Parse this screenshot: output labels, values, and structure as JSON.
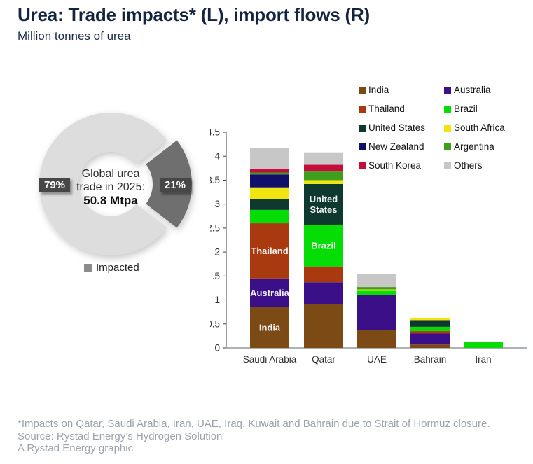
{
  "header": {
    "title": "Urea: Trade impacts* (L), import flows (R)",
    "subtitle": "Million tonnes of urea"
  },
  "chart_data": [
    {
      "type": "pie",
      "donut": true,
      "center_text": {
        "line1": "Global urea",
        "line2": "trade in 2025:",
        "line3": "50.8 Mtpa"
      },
      "slices": [
        {
          "callout": "79%",
          "value_pct": 79,
          "color": "#DDDDDD",
          "exploded": false
        },
        {
          "callout": "21%",
          "value_pct": 21,
          "color": "#6F6F6F",
          "exploded": true
        }
      ],
      "legend": {
        "label": "Impacted",
        "color": "#8C8C8C"
      },
      "callout_left": "79%",
      "callout_right": "21%"
    },
    {
      "type": "bar",
      "stacked": true,
      "categories": [
        "Saudi Arabia",
        "Qatar",
        "UAE",
        "Bahrain",
        "Iran"
      ],
      "series": [
        {
          "name": "India",
          "color": "#7C4A15",
          "values": [
            0.85,
            0.92,
            0.38,
            0.07,
            0
          ]
        },
        {
          "name": "Australia",
          "color": "#3A0F87",
          "values": [
            0.6,
            0.45,
            0.73,
            0.23,
            0
          ]
        },
        {
          "name": "Thailand",
          "color": "#A93A10",
          "values": [
            1.15,
            0.33,
            0,
            0.05,
            0
          ]
        },
        {
          "name": "Brazil",
          "color": "#06DD06",
          "values": [
            0.28,
            0.87,
            0.08,
            0.09,
            0.13
          ]
        },
        {
          "name": "United States",
          "color": "#0E392E",
          "values": [
            0.22,
            0.85,
            0,
            0.14,
            0
          ]
        },
        {
          "name": "South Africa",
          "color": "#F1E511",
          "values": [
            0.25,
            0.08,
            0.03,
            0.05,
            0
          ]
        },
        {
          "name": "New Zealand",
          "color": "#101069",
          "values": [
            0.27,
            0,
            0,
            0,
            0
          ]
        },
        {
          "name": "Argentina",
          "color": "#3F9E1E",
          "values": [
            0.04,
            0.18,
            0.05,
            0,
            0
          ]
        },
        {
          "name": "South Korea",
          "color": "#C50C3B",
          "values": [
            0.08,
            0.14,
            0,
            0,
            0
          ]
        },
        {
          "name": "Others",
          "color": "#C7C7C7",
          "values": [
            0.43,
            0.26,
            0.27,
            0,
            0
          ]
        }
      ],
      "ylim": [
        0,
        4.5
      ],
      "ytick_step": 0.5,
      "grid": false,
      "legend_position": "top-right",
      "bar_labels": [
        {
          "category_index": 0,
          "series": "India",
          "lines": [
            "India"
          ]
        },
        {
          "category_index": 0,
          "series": "Australia",
          "lines": [
            "Australia"
          ]
        },
        {
          "category_index": 0,
          "series": "Thailand",
          "lines": [
            "Thailand"
          ]
        },
        {
          "category_index": 1,
          "series": "Brazil",
          "lines": [
            "Brazil"
          ]
        },
        {
          "category_index": 1,
          "series": "United States",
          "lines": [
            "United",
            "States"
          ]
        }
      ]
    }
  ],
  "footnotes": {
    "note": "*Impacts on Qatar, Saudi Arabia, Iran, UAE, Iraq, Kuwait and Bahrain due to Strait of Hormuz closure.",
    "source": "Source: Rystad Energy’s Hydrogen Solution",
    "credit": "A Rystad Energy graphic"
  },
  "colors": {
    "title": "#142340",
    "footnote": "#9AA3AE",
    "donut_rest": "#DDDDDD",
    "donut_impacted": "#6F6F6F",
    "axis": "#3C3C3C",
    "baseline": "#9097A0"
  }
}
